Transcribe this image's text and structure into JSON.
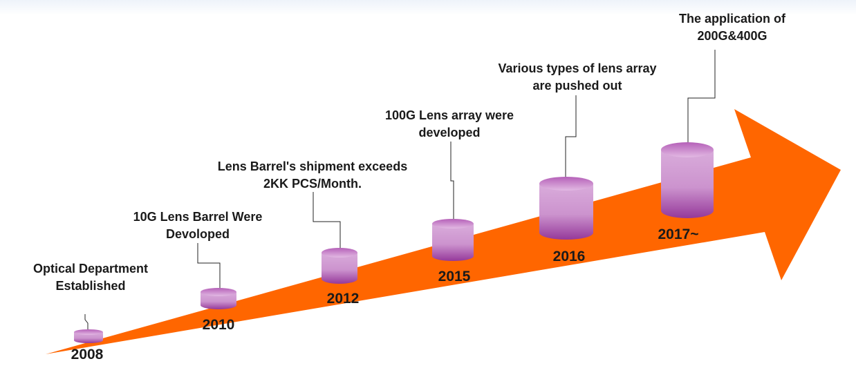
{
  "milestones": [
    {
      "year": "2008",
      "line1": "Optical Department",
      "line2": "Established"
    },
    {
      "year": "2010",
      "line1": "10G Lens Barrel Were",
      "line2": "Devoloped"
    },
    {
      "year": "2012",
      "line1": "Lens Barrel's shipment  exceeds",
      "line2": "2KK PCS/Month."
    },
    {
      "year": "2015",
      "line1": "100G Lens array were",
      "line2": "developed"
    },
    {
      "year": "2016",
      "line1": "Various types of lens array",
      "line2": "are pushed out"
    },
    {
      "year": "2017~",
      "line1": "The application  of",
      "line2": "200G&400G"
    }
  ],
  "colors": {
    "arrow": "#ff6600",
    "cylinder_light": "#d6a6d8",
    "cylinder_dark": "#9a3a9c",
    "cylinder_top": "#cf8fd0",
    "text": "#1a1a1a",
    "connector": "#222222"
  }
}
